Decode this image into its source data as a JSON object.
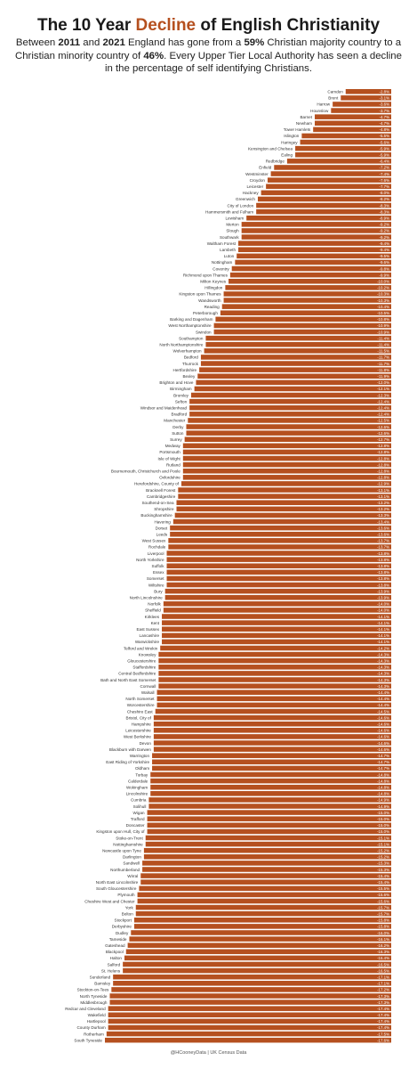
{
  "header": {
    "title_pre": "The 10 Year ",
    "title_accent": "Decline",
    "title_post": " of English Christianity",
    "sub_1": "Between ",
    "sub_2011": "2011",
    "sub_and": " and ",
    "sub_2021": "2021",
    "sub_mid": " England has gone from a ",
    "sub_59": "59%",
    "sub_mid2": " Christian majority country to a Christian minority country of ",
    "sub_46": "46%",
    "sub_end": ". Every Upper Tier Local Authority has seen a decline in the percentage of self identifying Christians."
  },
  "footer": {
    "credit": "@HCooneyData | UK Census Data"
  },
  "colors": {
    "bar": "#b5501f",
    "accent": "#b5501f",
    "label_text": "#ffffff"
  },
  "chart_data": {
    "type": "bar",
    "orientation": "horizontal",
    "categories": [
      "Camden",
      "Brent",
      "Harrow",
      "Hounslow",
      "Barnet",
      "Newham",
      "Tower Hamlets",
      "Islington",
      "Haringey",
      "Kensington and Chelsea",
      "Ealing",
      "Redbridge",
      "Enfield",
      "Westminster",
      "Croydon",
      "Leicester",
      "Hackney",
      "Greenwich",
      "City of London",
      "Hammersmith and Fulham",
      "Lewisham",
      "Merton",
      "Slough",
      "Southwark",
      "Waltham Forest",
      "Lambeth",
      "Luton",
      "Nottingham",
      "Coventry",
      "Richmond upon Thames",
      "Milton Keynes",
      "Hillingdon",
      "Kingston upon Thames",
      "Wandsworth",
      "Reading",
      "Peterborough",
      "Barking and Dagenham",
      "West Northamptonshire",
      "Swindon",
      "Southampton",
      "North Northamptonshire",
      "Wolverhampton",
      "Bedford",
      "Thurrock",
      "Hertfordshire",
      "Bexley",
      "Brighton and Hove",
      "Birmingham",
      "Bromley",
      "Sefton",
      "Windsor and Maidenhead",
      "Bradford",
      "Manchester",
      "Derby",
      "Sutton",
      "Surrey",
      "Medway",
      "Portsmouth",
      "Isle of Wight",
      "Rutland",
      "Bournemouth, Christchurch and Poole",
      "Oxfordshire",
      "Herefordshire, County of",
      "Bracknell Forest",
      "Cambridgeshire",
      "Southend-on-Sea",
      "Shropshire",
      "Buckinghamshire",
      "Havering",
      "Dorset",
      "Leeds",
      "West Sussex",
      "Rochdale",
      "Liverpool",
      "North Yorkshire",
      "Suffolk",
      "Essex",
      "Somerset",
      "Wiltshire",
      "Bury",
      "North Lincolnshire",
      "Norfolk",
      "Sheffield",
      "Kirklees",
      "Kent",
      "East Sussex",
      "Lancashire",
      "Warwickshire",
      "Telford and Wrekin",
      "Knowsley",
      "Gloucestershire",
      "Staffordshire",
      "Central Bedfordshire",
      "Bath and North East Somerset",
      "Cornwall",
      "Walsall",
      "North Somerset",
      "Worcestershire",
      "Cheshire East",
      "Bristol, City of",
      "Hampshire",
      "Leicestershire",
      "West Berkshire",
      "Devon",
      "Blackburn with Darwen",
      "Warrington",
      "East Riding of Yorkshire",
      "Oldham",
      "Torbay",
      "Calderdale",
      "Wokingham",
      "Lincolnshire",
      "Cumbria",
      "Solihull",
      "Wigan",
      "Trafford",
      "Doncaster",
      "Kingston upon Hull, City of",
      "Stoke-on-Trent",
      "Nottinghamshire",
      "Newcastle upon Tyne",
      "Darlington",
      "Sandwell",
      "Northumberland",
      "Wirral",
      "North East Lincolnshire",
      "South Gloucestershire",
      "Plymouth",
      "Cheshire West and Chester",
      "York",
      "Bolton",
      "Stockport",
      "Derbyshire",
      "Dudley",
      "Tameside",
      "Gateshead",
      "Blackpool",
      "Halton",
      "Salford",
      "St. Helens",
      "Sunderland",
      "Barnsley",
      "Stockton-on-Tees",
      "North Tyneside",
      "Middlesbrough",
      "Redcar and Cleveland",
      "Wakefield",
      "Hartlepool",
      "County Durham",
      "Rotherham",
      "South Tyneside"
    ],
    "values": [
      2.8,
      3.1,
      3.6,
      3.7,
      4.7,
      4.7,
      4.8,
      5.5,
      5.6,
      5.9,
      5.9,
      6.4,
      7.2,
      7.4,
      7.6,
      7.7,
      8.0,
      8.2,
      8.3,
      8.3,
      8.9,
      9.2,
      9.2,
      9.2,
      9.4,
      9.4,
      9.5,
      9.6,
      9.8,
      9.9,
      10.0,
      10.2,
      10.3,
      10.3,
      10.4,
      10.5,
      10.8,
      10.9,
      10.9,
      11.4,
      11.4,
      11.5,
      11.7,
      11.7,
      11.8,
      11.9,
      12.0,
      12.1,
      12.3,
      12.4,
      12.4,
      12.4,
      12.5,
      12.6,
      12.6,
      12.7,
      12.8,
      12.8,
      12.8,
      12.8,
      12.8,
      12.8,
      12.9,
      13.1,
      13.1,
      13.2,
      13.2,
      13.3,
      13.4,
      13.6,
      13.6,
      13.7,
      13.7,
      13.8,
      13.8,
      13.8,
      13.8,
      13.8,
      13.8,
      13.9,
      13.9,
      14.0,
      14.0,
      14.1,
      14.1,
      14.1,
      14.1,
      14.1,
      14.2,
      14.3,
      14.3,
      14.3,
      14.3,
      14.3,
      14.3,
      14.4,
      14.4,
      14.4,
      14.5,
      14.6,
      14.6,
      14.6,
      14.6,
      14.6,
      14.6,
      14.7,
      14.7,
      14.7,
      14.8,
      14.8,
      14.8,
      14.8,
      14.9,
      14.9,
      15.0,
      15.0,
      15.0,
      15.0,
      15.1,
      15.1,
      15.2,
      15.2,
      15.3,
      15.3,
      15.4,
      15.4,
      15.5,
      15.6,
      15.6,
      15.7,
      15.7,
      15.8,
      15.8,
      16.0,
      16.1,
      16.2,
      16.3,
      16.4,
      16.5,
      16.5,
      17.1,
      17.1,
      17.2,
      17.3,
      17.3,
      17.4,
      17.4,
      17.4,
      17.4,
      17.5,
      17.6
    ],
    "value_suffix": "%",
    "value_sign": "-",
    "title": "",
    "xlabel": "",
    "ylabel": "",
    "xlim": [
      0,
      17.6
    ],
    "grid": false,
    "legend": "none"
  }
}
